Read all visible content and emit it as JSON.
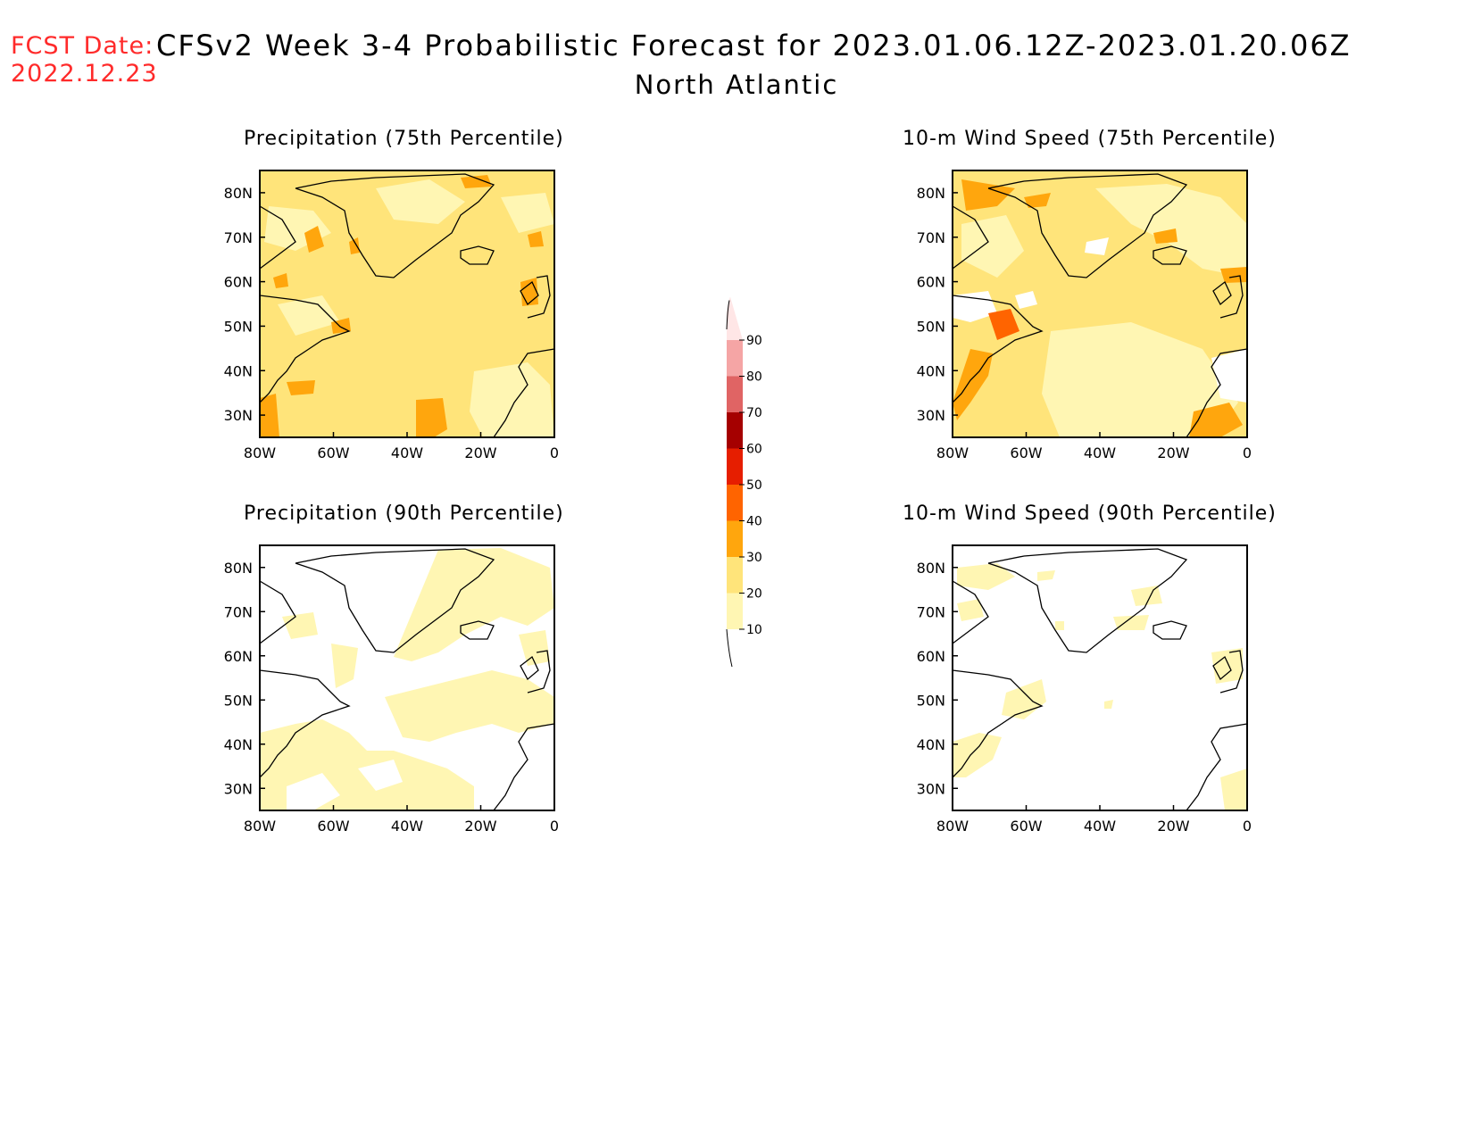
{
  "header": {
    "fcst_label": "FCST Date:",
    "fcst_date": "2022.12.23",
    "title": "CFSv2 Week 3-4 Probabilistic Forecast for 2023.01.06.12Z-2023.01.20.06Z",
    "subtitle": "North Atlantic"
  },
  "panels": [
    {
      "id": "precip75",
      "title": "Precipitation (75th Percentile)"
    },
    {
      "id": "wind75",
      "title": "10-m Wind Speed (75th Percentile)"
    },
    {
      "id": "precip90",
      "title": "Precipitation (90th Percentile)"
    },
    {
      "id": "wind90",
      "title": "10-m Wind Speed (90th Percentile)"
    }
  ],
  "axes": {
    "lat_labels": [
      "80N",
      "70N",
      "60N",
      "50N",
      "40N",
      "30N"
    ],
    "lon_labels": [
      "80W",
      "60W",
      "40W",
      "20W",
      "0"
    ],
    "lat_range": [
      25,
      85
    ],
    "lon_range": [
      -80,
      0
    ]
  },
  "colorbar": {
    "ticks": [
      "10",
      "20",
      "30",
      "40",
      "50",
      "60",
      "70",
      "80",
      "90"
    ],
    "colors": [
      "#fff6b3",
      "#ffe47a",
      "#ffa60d",
      "#ff6400",
      "#e61e00",
      "#a50000",
      "#e06464",
      "#f5a5a5",
      "#ffe6e6"
    ],
    "unit": "%"
  },
  "colors": {
    "fcst_text": "#ff2a2a",
    "coastline": "#000000"
  }
}
